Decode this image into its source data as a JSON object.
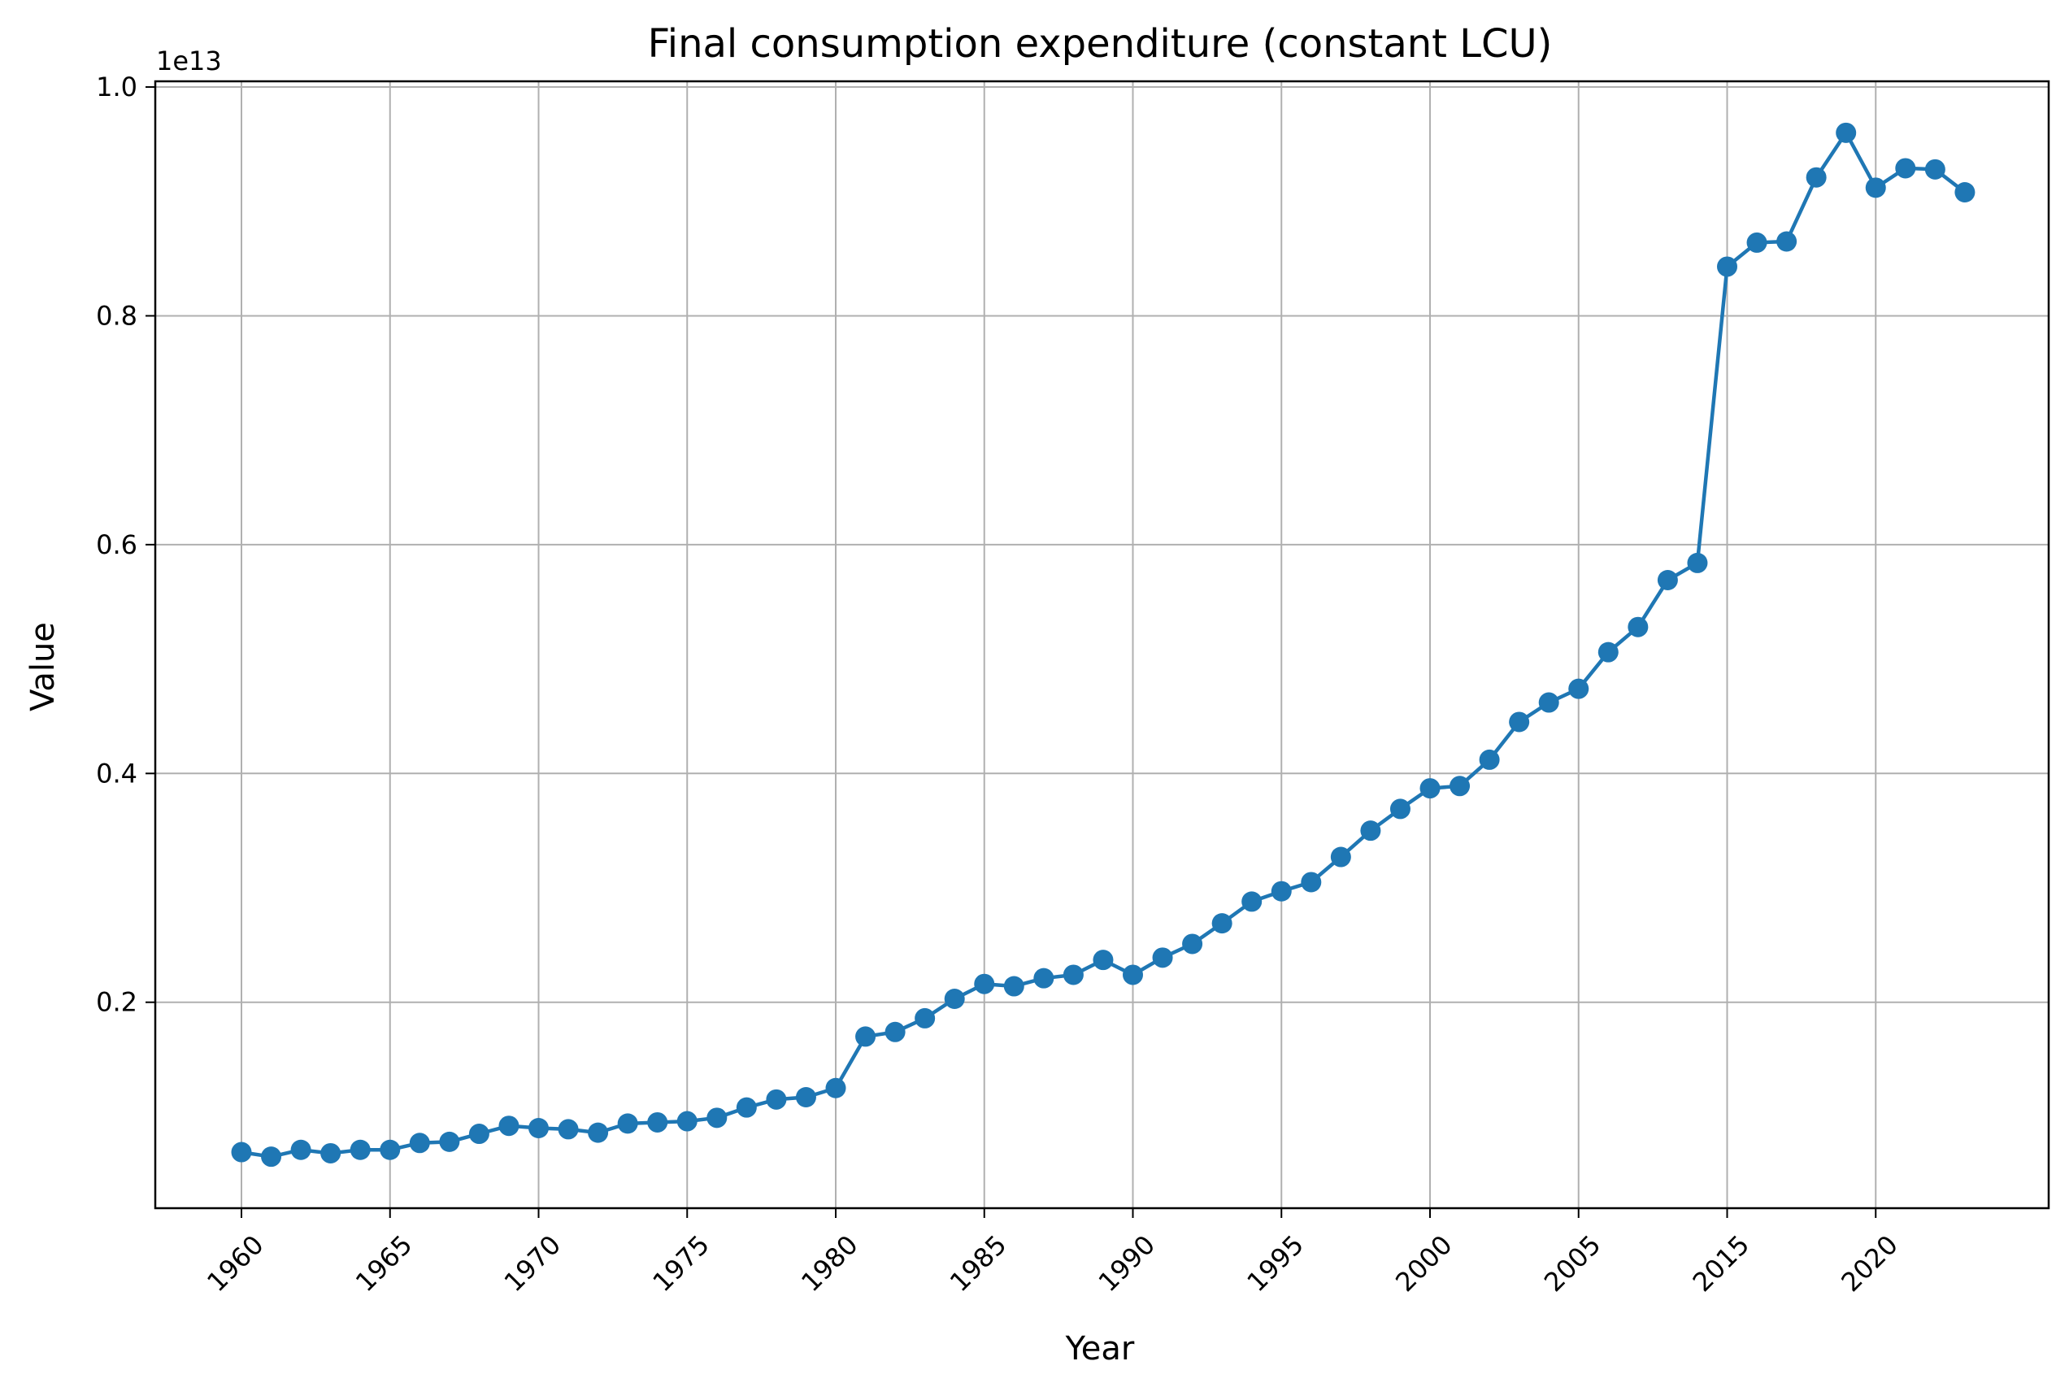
{
  "chart_data": {
    "type": "line",
    "title": "Final consumption expenditure (constant LCU)",
    "xlabel": "Year",
    "ylabel": "Value",
    "y_scale_label": "1e13",
    "y_multiplier": 10000000000000,
    "ylim": [
      0.02,
      1.005
    ],
    "grid": true,
    "xticks": [
      {
        "label": "1960",
        "pos": 0
      },
      {
        "label": "1965",
        "pos": 5
      },
      {
        "label": "1970",
        "pos": 10
      },
      {
        "label": "1975",
        "pos": 15
      },
      {
        "label": "1980",
        "pos": 20
      },
      {
        "label": "1985",
        "pos": 25
      },
      {
        "label": "1990",
        "pos": 30
      },
      {
        "label": "1995",
        "pos": 35
      },
      {
        "label": "2000",
        "pos": 40
      },
      {
        "label": "2005",
        "pos": 45
      },
      {
        "label": "2015",
        "pos": 50
      },
      {
        "label": "2020",
        "pos": 55
      }
    ],
    "yticks": [
      {
        "label": "0.2",
        "value": 0.2
      },
      {
        "label": "0.4",
        "value": 0.4
      },
      {
        "label": "0.6",
        "value": 0.6
      },
      {
        "label": "0.8",
        "value": 0.8
      },
      {
        "label": "1.0",
        "value": 1.0
      }
    ],
    "color": "#1f77b4",
    "series": [
      {
        "values": [
          0.069,
          0.065,
          0.071,
          0.068,
          0.071,
          0.071,
          0.077,
          0.078,
          0.085,
          0.092,
          0.09,
          0.089,
          0.086,
          0.094,
          0.095,
          0.096,
          0.099,
          0.108,
          0.115,
          0.117,
          0.125,
          0.17,
          0.174,
          0.186,
          0.203,
          0.216,
          0.214,
          0.221,
          0.224,
          0.237,
          0.224,
          0.239,
          0.251,
          0.269,
          0.288,
          0.297,
          0.305,
          0.327,
          0.35,
          0.369,
          0.387,
          0.389,
          0.412,
          0.445,
          0.462,
          0.474,
          0.506,
          0.528,
          0.569,
          0.584,
          0.843,
          0.864,
          0.865,
          0.921,
          0.96,
          0.912,
          0.929,
          0.928,
          0.908
        ]
      }
    ]
  }
}
